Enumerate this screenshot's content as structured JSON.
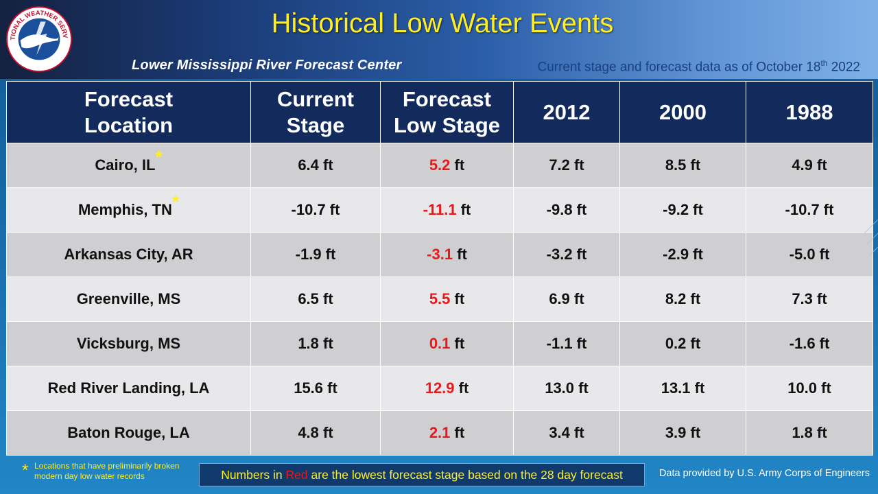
{
  "header": {
    "title": "Historical Low Water Events",
    "subtitle_left": "Lower Mississippi River Forecast Center",
    "subtitle_right_prefix": "Current stage and forecast data as of October 18",
    "subtitle_right_sup": "th",
    "subtitle_right_suffix": " 2022",
    "logo_text": "NATIONAL WEATHER SERVICE"
  },
  "table": {
    "headers": [
      [
        "Forecast",
        "Location"
      ],
      [
        "Current",
        "Stage"
      ],
      [
        "Forecast",
        "Low Stage"
      ],
      [
        "2012"
      ],
      [
        "2000"
      ],
      [
        "1988"
      ]
    ],
    "rows": [
      {
        "location": "Cairo, IL",
        "star": "*",
        "current": "6.4 ft",
        "forecast_value": "5.2",
        "forecast_unit": " ft",
        "y2012": "7.2 ft",
        "y2000": "8.5 ft",
        "y1988": "4.9 ft"
      },
      {
        "location": "Memphis, TN",
        "star": "*",
        "current": "-10.7 ft",
        "forecast_value": "-11.1",
        "forecast_unit": " ft",
        "y2012": "-9.8 ft",
        "y2000": "-9.2 ft",
        "y1988": "-10.7 ft"
      },
      {
        "location": "Arkansas City, AR",
        "star": "",
        "current": "-1.9 ft",
        "forecast_value": "-3.1",
        "forecast_unit": " ft",
        "y2012": "-3.2 ft",
        "y2000": "-2.9 ft",
        "y1988": "-5.0 ft"
      },
      {
        "location": "Greenville, MS",
        "star": "",
        "current": "6.5 ft",
        "forecast_value": "5.5",
        "forecast_unit": " ft",
        "y2012": "6.9 ft",
        "y2000": "8.2 ft",
        "y1988": "7.3 ft"
      },
      {
        "location": "Vicksburg, MS",
        "star": "",
        "current": "1.8 ft",
        "forecast_value": "0.1",
        "forecast_unit": " ft",
        "y2012": "-1.1 ft",
        "y2000": "0.2 ft",
        "y1988": "-1.6 ft"
      },
      {
        "location": "Red River Landing, LA",
        "star": "",
        "current": "15.6 ft",
        "forecast_value": "12.9",
        "forecast_unit": " ft",
        "y2012": "13.0 ft",
        "y2000": "13.1 ft",
        "y1988": "10.0 ft"
      },
      {
        "location": "Baton Rouge, LA",
        "star": "",
        "current": "4.8 ft",
        "forecast_value": "2.1",
        "forecast_unit": " ft",
        "y2012": "3.4 ft",
        "y2000": "3.9 ft",
        "y1988": "1.8 ft"
      }
    ]
  },
  "footer": {
    "footnote_star": "*",
    "footnote_text": "Locations that have preliminarily broken modern day low water records",
    "note_prefix": "Numbers in ",
    "note_red": "Red",
    "note_suffix": " are the lowest forecast stage based on the 28 day forecast",
    "credit": "Data provided by U.S. Army Corps of Engineers"
  },
  "colors": {
    "title_yellow": "#ffee22",
    "header_navy": "#122a5c",
    "red": "#e8191a",
    "row_dark": "#cfcfd1",
    "row_light": "#e8e8ea"
  }
}
